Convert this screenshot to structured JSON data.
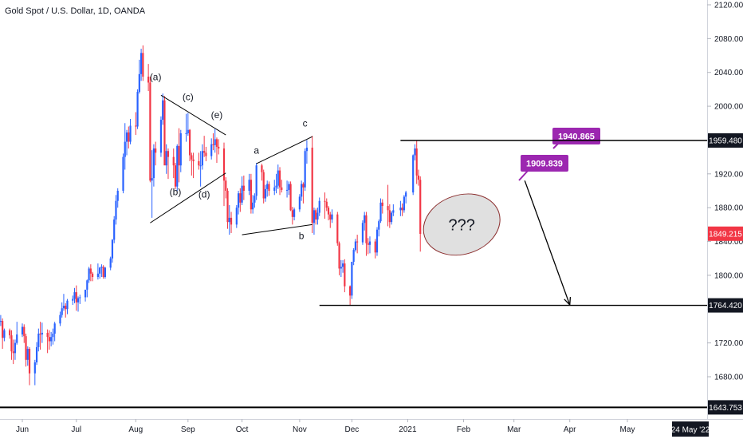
{
  "header": {
    "title": "Gold Spot / U.S. Dollar, 1D, OANDA"
  },
  "chart_data": {
    "type": "candlestick",
    "colors": {
      "up": "#2962ff",
      "down": "#f23645",
      "text": "#131722",
      "callout": "#9c27b0",
      "current_price_bg": "#f23645",
      "ellipse_fill": "#e0e0e0",
      "ellipse_stroke": "#8b2e2e"
    },
    "y_axis": {
      "ticks": [
        2120,
        2080,
        2040,
        2000,
        1960,
        1920,
        1880,
        1840,
        1800,
        1760,
        1720,
        1680
      ],
      "tick_labels": [
        "2120.000",
        "2080.000",
        "2040.000",
        "2000.000",
        "1960.000",
        "1920.000",
        "1880.000",
        "1840.000",
        "1800.000",
        "1760.000",
        "1720.000",
        "1680.000"
      ],
      "ylim": [
        1630,
        2134
      ]
    },
    "x_axis": {
      "labels": [
        {
          "date": "2020-06-01",
          "text": "Jun"
        },
        {
          "date": "2020-07-01",
          "text": "Jul"
        },
        {
          "date": "2020-08-03",
          "text": "Aug"
        },
        {
          "date": "2020-09-01",
          "text": "Sep"
        },
        {
          "date": "2020-10-01",
          "text": "Oct"
        },
        {
          "date": "2020-11-02",
          "text": "Nov"
        },
        {
          "date": "2020-12-01",
          "text": "Dec"
        },
        {
          "date": "2021-01-01",
          "text": "2021"
        },
        {
          "date": "2021-02-01",
          "text": "Feb"
        },
        {
          "date": "2021-03-01",
          "text": "Mar"
        },
        {
          "date": "2021-04-01",
          "text": "Apr"
        },
        {
          "date": "2021-05-03",
          "text": "May"
        }
      ],
      "crosshair_label": "24 May '22"
    },
    "price_labels": [
      {
        "value": 1959.48,
        "text": "1959.480",
        "style": "dark"
      },
      {
        "value": 1849.215,
        "text": "1849.215",
        "style": "current"
      },
      {
        "value": 1764.42,
        "text": "1764.420",
        "style": "dark"
      },
      {
        "value": 1643.753,
        "text": "1643.753",
        "style": "dark"
      }
    ],
    "horizontal_lines": [
      {
        "value": 1959.48,
        "from": "2020-12-28",
        "to": "end"
      },
      {
        "value": 1764.42,
        "from": "2020-11-13",
        "to": "end"
      },
      {
        "value": 1643.753,
        "from": "start",
        "to": "end"
      }
    ],
    "wave_labels": [
      "(a)",
      "(b)",
      "(c)",
      "(d)",
      "(e)",
      "a",
      "b",
      "c"
    ],
    "callouts": [
      "1909.839",
      "1940.865"
    ],
    "annotation_text": "???",
    "candles_ohlc": [
      [
        "2020-05-15",
        1744,
        1763,
        1733,
        1756
      ],
      [
        "2020-05-18",
        1756,
        1765,
        1723,
        1731
      ],
      [
        "2020-05-19",
        1731,
        1749,
        1726,
        1745
      ],
      [
        "2020-05-20",
        1745,
        1753,
        1740,
        1746
      ],
      [
        "2020-05-21",
        1746,
        1749,
        1713,
        1726
      ],
      [
        "2020-05-22",
        1726,
        1737,
        1722,
        1735
      ],
      [
        "2020-05-25",
        1735,
        1737,
        1725,
        1729
      ],
      [
        "2020-05-26",
        1729,
        1735,
        1700,
        1710
      ],
      [
        "2020-05-27",
        1710,
        1724,
        1695,
        1708
      ],
      [
        "2020-05-28",
        1708,
        1724,
        1700,
        1720
      ],
      [
        "2020-05-29",
        1720,
        1745,
        1718,
        1730
      ],
      [
        "2020-06-01",
        1730,
        1743,
        1727,
        1739
      ],
      [
        "2020-06-02",
        1739,
        1742,
        1720,
        1728
      ],
      [
        "2020-06-03",
        1728,
        1731,
        1692,
        1700
      ],
      [
        "2020-06-04",
        1700,
        1716,
        1693,
        1713
      ],
      [
        "2020-06-05",
        1713,
        1715,
        1670,
        1684
      ],
      [
        "2020-06-08",
        1684,
        1700,
        1670,
        1697
      ],
      [
        "2020-06-09",
        1697,
        1721,
        1694,
        1715
      ],
      [
        "2020-06-10",
        1715,
        1737,
        1710,
        1731
      ],
      [
        "2020-06-11",
        1731,
        1745,
        1712,
        1730
      ],
      [
        "2020-06-12",
        1730,
        1744,
        1720,
        1732
      ],
      [
        "2020-06-15",
        1732,
        1736,
        1708,
        1727
      ],
      [
        "2020-06-16",
        1727,
        1735,
        1712,
        1722
      ],
      [
        "2020-06-17",
        1722,
        1733,
        1716,
        1727
      ],
      [
        "2020-06-18",
        1727,
        1737,
        1718,
        1731
      ],
      [
        "2020-06-19",
        1731,
        1745,
        1722,
        1743
      ],
      [
        "2020-06-22",
        1743,
        1757,
        1740,
        1753
      ],
      [
        "2020-06-23",
        1753,
        1768,
        1750,
        1761
      ],
      [
        "2020-06-24",
        1761,
        1778,
        1758,
        1764
      ],
      [
        "2020-06-25",
        1764,
        1767,
        1750,
        1760
      ],
      [
        "2020-06-26",
        1760,
        1772,
        1754,
        1770
      ],
      [
        "2020-06-29",
        1770,
        1776,
        1765,
        1772
      ],
      [
        "2020-06-30",
        1772,
        1785,
        1767,
        1780
      ],
      [
        "2020-07-01",
        1780,
        1788,
        1758,
        1768
      ],
      [
        "2020-07-02",
        1768,
        1775,
        1757,
        1773
      ],
      [
        "2020-07-03",
        1773,
        1777,
        1766,
        1774
      ],
      [
        "2020-07-06",
        1774,
        1783,
        1769,
        1783
      ],
      [
        "2020-07-07",
        1783,
        1795,
        1774,
        1794
      ],
      [
        "2020-07-08",
        1794,
        1810,
        1791,
        1808
      ],
      [
        "2020-07-09",
        1808,
        1813,
        1793,
        1802
      ],
      [
        "2020-07-10",
        1802,
        1804,
        1793,
        1798
      ],
      [
        "2020-07-13",
        1798,
        1814,
        1795,
        1802
      ],
      [
        "2020-07-14",
        1802,
        1810,
        1796,
        1809
      ],
      [
        "2020-07-15",
        1809,
        1813,
        1798,
        1810
      ],
      [
        "2020-07-16",
        1810,
        1812,
        1796,
        1798
      ],
      [
        "2020-07-17",
        1798,
        1810,
        1796,
        1809
      ],
      [
        "2020-07-20",
        1809,
        1822,
        1806,
        1820
      ],
      [
        "2020-07-21",
        1820,
        1843,
        1815,
        1842
      ],
      [
        "2020-07-22",
        1842,
        1870,
        1838,
        1866
      ],
      [
        "2020-07-23",
        1866,
        1895,
        1860,
        1888
      ],
      [
        "2020-07-24",
        1888,
        1903,
        1880,
        1900
      ],
      [
        "2020-07-27",
        1900,
        1944,
        1897,
        1940
      ],
      [
        "2020-07-28",
        1940,
        1980,
        1925,
        1958
      ],
      [
        "2020-07-29",
        1958,
        1972,
        1942,
        1969
      ],
      [
        "2020-07-30",
        1969,
        1976,
        1950,
        1958
      ],
      [
        "2020-07-31",
        1958,
        1985,
        1955,
        1977
      ],
      [
        "2020-08-03",
        1977,
        1993,
        1966,
        1976
      ],
      [
        "2020-08-04",
        1976,
        2020,
        1973,
        2017
      ],
      [
        "2020-08-05",
        2017,
        2055,
        2015,
        2038
      ],
      [
        "2020-08-06",
        2038,
        2068,
        2030,
        2063
      ],
      [
        "2020-08-07",
        2063,
        2072,
        2030,
        2035
      ],
      [
        "2020-08-10",
        2035,
        2050,
        2018,
        2028
      ],
      [
        "2020-08-11",
        2028,
        2035,
        1910,
        1912
      ],
      [
        "2020-08-12",
        1912,
        1948,
        1868,
        1915
      ],
      [
        "2020-08-13",
        1915,
        1955,
        1905,
        1950
      ],
      [
        "2020-08-14",
        1950,
        1958,
        1930,
        1945
      ],
      [
        "2020-08-17",
        1945,
        1988,
        1940,
        1984
      ],
      [
        "2020-08-18",
        1984,
        2015,
        1978,
        2007
      ],
      [
        "2020-08-19",
        2007,
        2012,
        1935,
        1930
      ],
      [
        "2020-08-20",
        1930,
        1955,
        1920,
        1947
      ],
      [
        "2020-08-21",
        1947,
        1950,
        1914,
        1940
      ],
      [
        "2020-08-24",
        1940,
        1950,
        1915,
        1930
      ],
      [
        "2020-08-25",
        1930,
        1933,
        1902,
        1905
      ],
      [
        "2020-08-26",
        1905,
        1955,
        1900,
        1953
      ],
      [
        "2020-08-27",
        1953,
        1974,
        1910,
        1930
      ],
      [
        "2020-08-28",
        1930,
        1972,
        1922,
        1968
      ],
      [
        "2020-08-31",
        1968,
        1991,
        1958,
        1968
      ],
      [
        "2020-09-01",
        1968,
        1992,
        1965,
        1972
      ],
      [
        "2020-09-02",
        1972,
        1973,
        1935,
        1942
      ],
      [
        "2020-09-03",
        1942,
        1945,
        1918,
        1937
      ],
      [
        "2020-09-04",
        1937,
        1945,
        1915,
        1935
      ],
      [
        "2020-09-07",
        1935,
        1945,
        1925,
        1930
      ],
      [
        "2020-09-08",
        1930,
        1947,
        1905,
        1930
      ],
      [
        "2020-09-09",
        1930,
        1955,
        1925,
        1947
      ],
      [
        "2020-09-10",
        1947,
        1965,
        1940,
        1945
      ],
      [
        "2020-09-11",
        1945,
        1952,
        1935,
        1941
      ],
      [
        "2020-09-14",
        1941,
        1962,
        1937,
        1955
      ],
      [
        "2020-09-15",
        1955,
        1968,
        1948,
        1954
      ],
      [
        "2020-09-16",
        1954,
        1973,
        1945,
        1961
      ],
      [
        "2020-09-17",
        1961,
        1963,
        1933,
        1952
      ],
      [
        "2020-09-18",
        1952,
        1961,
        1943,
        1950
      ],
      [
        "2020-09-21",
        1950,
        1957,
        1882,
        1912
      ],
      [
        "2020-09-22",
        1912,
        1916,
        1891,
        1900
      ],
      [
        "2020-09-23",
        1900,
        1903,
        1855,
        1863
      ],
      [
        "2020-09-24",
        1863,
        1883,
        1848,
        1868
      ],
      [
        "2020-09-25",
        1868,
        1875,
        1850,
        1860
      ],
      [
        "2020-09-28",
        1860,
        1883,
        1856,
        1880
      ],
      [
        "2020-09-29",
        1880,
        1900,
        1872,
        1897
      ],
      [
        "2020-09-30",
        1897,
        1903,
        1875,
        1886
      ],
      [
        "2020-10-01",
        1886,
        1917,
        1883,
        1906
      ],
      [
        "2020-10-02",
        1906,
        1918,
        1889,
        1900
      ],
      [
        "2020-10-05",
        1900,
        1920,
        1895,
        1913
      ],
      [
        "2020-10-06",
        1913,
        1920,
        1873,
        1878
      ],
      [
        "2020-10-07",
        1878,
        1895,
        1873,
        1886
      ],
      [
        "2020-10-08",
        1886,
        1897,
        1880,
        1894
      ],
      [
        "2020-10-09",
        1894,
        1933,
        1889,
        1930
      ],
      [
        "2020-10-12",
        1930,
        1932,
        1912,
        1922
      ],
      [
        "2020-10-13",
        1922,
        1925,
        1885,
        1891
      ],
      [
        "2020-10-14",
        1891,
        1907,
        1887,
        1902
      ],
      [
        "2020-10-15",
        1902,
        1912,
        1893,
        1908
      ],
      [
        "2020-10-16",
        1908,
        1911,
        1894,
        1900
      ],
      [
        "2020-10-19",
        1900,
        1913,
        1895,
        1904
      ],
      [
        "2020-10-20",
        1904,
        1920,
        1897,
        1906
      ],
      [
        "2020-10-21",
        1906,
        1931,
        1902,
        1924
      ],
      [
        "2020-10-22",
        1924,
        1928,
        1895,
        1904
      ],
      [
        "2020-10-23",
        1904,
        1913,
        1898,
        1901
      ],
      [
        "2020-10-26",
        1901,
        1912,
        1892,
        1901
      ],
      [
        "2020-10-27",
        1901,
        1911,
        1895,
        1908
      ],
      [
        "2020-10-28",
        1908,
        1911,
        1876,
        1877
      ],
      [
        "2020-10-29",
        1877,
        1881,
        1860,
        1869
      ],
      [
        "2020-10-30",
        1869,
        1880,
        1865,
        1878
      ],
      [
        "2020-11-02",
        1878,
        1896,
        1875,
        1893
      ],
      [
        "2020-11-03",
        1893,
        1912,
        1888,
        1908
      ],
      [
        "2020-11-04",
        1908,
        1910,
        1885,
        1904
      ],
      [
        "2020-11-05",
        1904,
        1950,
        1900,
        1947
      ],
      [
        "2020-11-06",
        1947,
        1960,
        1932,
        1951
      ],
      [
        "2020-11-09",
        1951,
        1965,
        1850,
        1862
      ],
      [
        "2020-11-10",
        1862,
        1880,
        1848,
        1877
      ],
      [
        "2020-11-11",
        1877,
        1879,
        1860,
        1866
      ],
      [
        "2020-11-12",
        1866,
        1880,
        1860,
        1874
      ],
      [
        "2020-11-13",
        1874,
        1892,
        1870,
        1888
      ],
      [
        "2020-11-16",
        1888,
        1898,
        1867,
        1887
      ],
      [
        "2020-11-17",
        1887,
        1891,
        1876,
        1880
      ],
      [
        "2020-11-18",
        1880,
        1882,
        1865,
        1872
      ],
      [
        "2020-11-19",
        1872,
        1875,
        1856,
        1866
      ],
      [
        "2020-11-20",
        1866,
        1878,
        1862,
        1872
      ],
      [
        "2020-11-23",
        1872,
        1875,
        1835,
        1838
      ],
      [
        "2020-11-24",
        1838,
        1840,
        1800,
        1808
      ],
      [
        "2020-11-25",
        1808,
        1818,
        1798,
        1810
      ],
      [
        "2020-11-26",
        1810,
        1818,
        1803,
        1814
      ],
      [
        "2020-11-27",
        1814,
        1819,
        1780,
        1787
      ],
      [
        "2020-11-30",
        1787,
        1788,
        1764,
        1776
      ],
      [
        "2020-12-01",
        1776,
        1816,
        1772,
        1816
      ],
      [
        "2020-12-02",
        1816,
        1832,
        1812,
        1830
      ],
      [
        "2020-12-03",
        1830,
        1843,
        1828,
        1840
      ],
      [
        "2020-12-04",
        1840,
        1848,
        1826,
        1839
      ],
      [
        "2020-12-07",
        1839,
        1865,
        1836,
        1862
      ],
      [
        "2020-12-08",
        1862,
        1875,
        1853,
        1871
      ],
      [
        "2020-12-09",
        1871,
        1875,
        1823,
        1838
      ],
      [
        "2020-12-10",
        1838,
        1844,
        1825,
        1836
      ],
      [
        "2020-12-11",
        1836,
        1846,
        1826,
        1840
      ],
      [
        "2020-12-14",
        1840,
        1843,
        1820,
        1827
      ],
      [
        "2020-12-15",
        1827,
        1857,
        1823,
        1854
      ],
      [
        "2020-12-16",
        1854,
        1866,
        1846,
        1864
      ],
      [
        "2020-12-17",
        1864,
        1891,
        1862,
        1886
      ],
      [
        "2020-12-18",
        1886,
        1890,
        1873,
        1882
      ],
      [
        "2020-12-21",
        1882,
        1907,
        1858,
        1877
      ],
      [
        "2020-12-22",
        1877,
        1884,
        1856,
        1863
      ],
      [
        "2020-12-23",
        1863,
        1876,
        1860,
        1874
      ],
      [
        "2020-12-24",
        1874,
        1884,
        1870,
        1877
      ],
      [
        "2020-12-28",
        1877,
        1888,
        1870,
        1880
      ],
      [
        "2020-12-29",
        1880,
        1885,
        1870,
        1877
      ],
      [
        "2020-12-30",
        1877,
        1895,
        1874,
        1893
      ],
      [
        "2020-12-31",
        1893,
        1900,
        1885,
        1898
      ],
      [
        "2021-01-04",
        1898,
        1943,
        1895,
        1942
      ],
      [
        "2021-01-05",
        1942,
        1955,
        1936,
        1950
      ],
      [
        "2021-01-06",
        1950,
        1959,
        1908,
        1918
      ],
      [
        "2021-01-07",
        1918,
        1925,
        1906,
        1913
      ],
      [
        "2021-01-08",
        1913,
        1917,
        1828,
        1849
      ]
    ]
  }
}
